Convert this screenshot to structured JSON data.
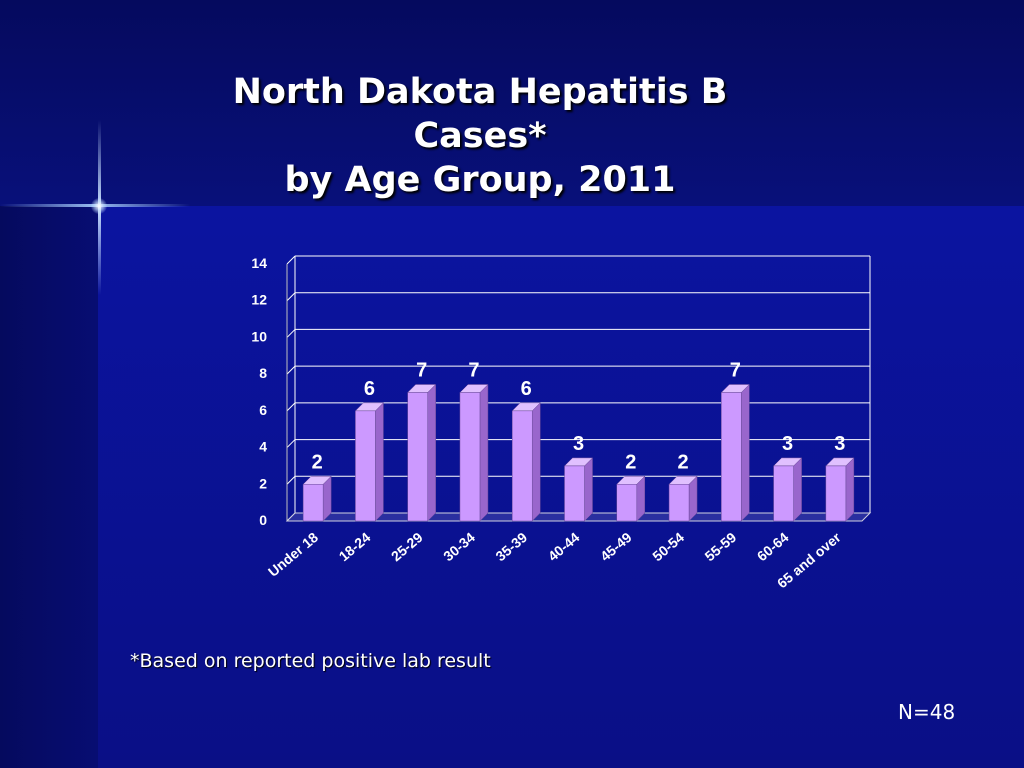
{
  "slide": {
    "title_line1": "North Dakota Hepatitis B Cases*",
    "title_line2": "by Age Group, 2011",
    "footnote": "*Based on reported positive lab result",
    "n_label": "N=48"
  },
  "colors": {
    "background": "#0b0f80",
    "bar_front": "#cc99ff",
    "bar_side": "#9966cc",
    "gridline": "#ffffff",
    "text": "#ffffff"
  },
  "chart_data": {
    "type": "bar",
    "title": "North Dakota Hepatitis B Cases* by Age Group, 2011",
    "categories": [
      "Under 18",
      "18-24",
      "25-29",
      "30-34",
      "35-39",
      "40-44",
      "45-49",
      "50-54",
      "55-59",
      "60-64",
      "65 and over"
    ],
    "values": [
      2,
      6,
      7,
      7,
      6,
      3,
      2,
      2,
      7,
      3,
      3
    ],
    "xlabel": "",
    "ylabel": "",
    "ylim": [
      0,
      14
    ],
    "yticks": [
      0,
      2,
      4,
      6,
      8,
      10,
      12,
      14
    ],
    "grid": true,
    "data_labels": true,
    "legend": "none"
  }
}
